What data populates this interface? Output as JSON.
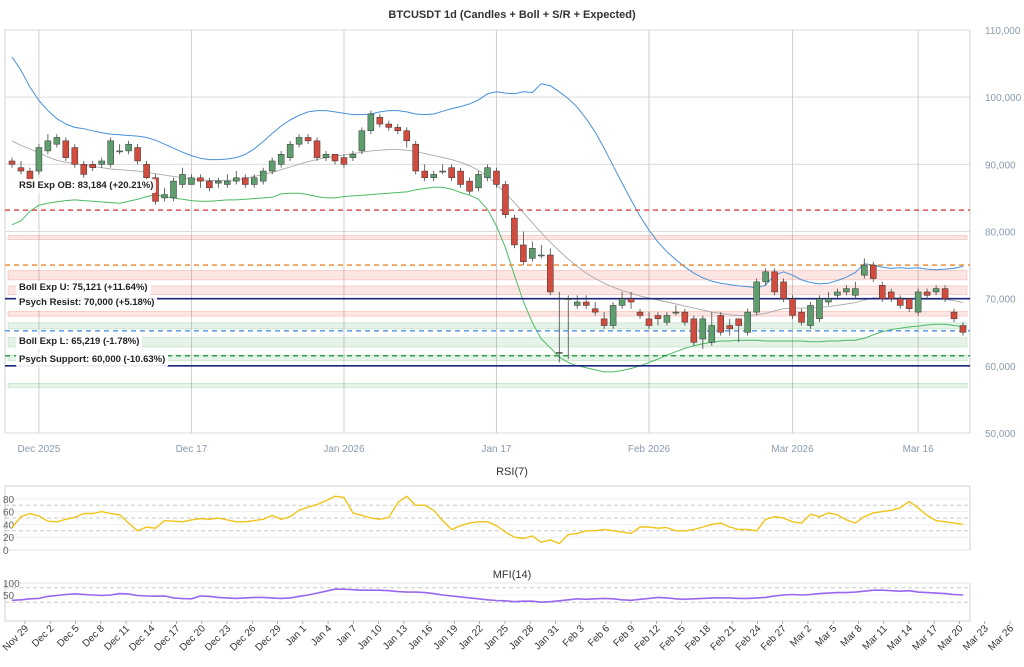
{
  "chart_data": [
    {
      "type": "candlestick",
      "title": "BTCUSDT 1d (Candles + Boll + S/R + Expected)",
      "y_ticks": [
        "110,000",
        "100,000",
        "90,000",
        "80,000",
        "70,000",
        "60,000",
        "50,000"
      ],
      "x_ticks": [
        "Dec 2025",
        "Dec 17",
        "Jan 2026",
        "Jan 17",
        "Feb 2026",
        "Mar 2026",
        "Mar 16"
      ],
      "ylim": [
        50000,
        110000
      ],
      "grid": true,
      "colors": {
        "up": "#5e9e6e",
        "down": "#d24b3f",
        "bb_upper": "#4a90d9",
        "bb_mid": "#a9a9a9",
        "bb_lower": "#4cbb64",
        "exp_ob": "#e05252",
        "exp_u": "#e8862a",
        "exp_l": "#4a90e2",
        "psych": "#1a237e",
        "support_g": "#2e9e57"
      },
      "candles": {
        "open": [
          90500,
          89500,
          89000,
          89000,
          92000,
          93000,
          93500,
          92500,
          90000,
          90000,
          90000,
          90000,
          92000,
          92000,
          92500,
          90000,
          88000,
          85000,
          85000,
          87000,
          87000,
          88000,
          87500,
          87200,
          87000,
          87500,
          88000,
          87000,
          87500,
          89000,
          90000,
          91000,
          93000,
          94000,
          93500,
          91000,
          91500,
          91000,
          91000,
          92000,
          95000,
          97000,
          96000,
          95500,
          95000,
          93000,
          89000,
          88000,
          89000,
          89500,
          89000,
          87500,
          86500,
          88000,
          89000,
          87000,
          82000,
          78000,
          76000,
          76500,
          76500,
          62000,
          70000,
          69000,
          69500,
          68500,
          67000,
          66000,
          69000,
          70000,
          68000,
          67000,
          67500,
          66500,
          68000,
          68000,
          67000,
          64000,
          63500,
          67500,
          66000,
          67000,
          65000,
          68000,
          72500,
          74000,
          72500,
          70000,
          68000,
          66000,
          67000,
          69500,
          70500,
          71000,
          70500,
          73500,
          75000,
          72000,
          71000,
          70000,
          70000,
          68000,
          71000,
          71000,
          71500,
          68000,
          66000
        ],
        "close": [
          90000,
          89000,
          86500,
          92500,
          93500,
          94000,
          91000,
          90000,
          88500,
          89500,
          90500,
          93500,
          92000,
          93000,
          90500,
          88000,
          84500,
          85500,
          87500,
          88500,
          88000,
          87500,
          86500,
          87500,
          87500,
          88000,
          87000,
          88000,
          89000,
          90500,
          91500,
          93000,
          94000,
          93500,
          91000,
          91500,
          90500,
          90000,
          91500,
          95000,
          97500,
          96000,
          95500,
          95000,
          93500,
          89000,
          88000,
          88500,
          89000,
          88000,
          87000,
          86000,
          88500,
          89500,
          87000,
          82500,
          78000,
          75500,
          77500,
          76500,
          71000,
          62000,
          70000,
          69500,
          69000,
          68000,
          66000,
          69000,
          70000,
          69500,
          67500,
          66000,
          67000,
          67500,
          68000,
          66500,
          63500,
          67000,
          66000,
          65000,
          65500,
          66000,
          68000,
          72500,
          74000,
          71000,
          70000,
          67500,
          66500,
          69000,
          70000,
          70000,
          71000,
          71500,
          71500,
          75000,
          73000,
          70000,
          70000,
          69000,
          68500,
          71000,
          70500,
          71500,
          70000,
          67000,
          65000
        ],
        "high": [
          91000,
          90500,
          89500,
          93000,
          94500,
          94500,
          94000,
          93000,
          90500,
          90500,
          91000,
          94000,
          93000,
          93500,
          93000,
          90500,
          88500,
          86500,
          88000,
          89500,
          88500,
          88500,
          88000,
          88000,
          88500,
          89000,
          88500,
          88500,
          89500,
          91000,
          92000,
          93500,
          94500,
          94500,
          94000,
          92000,
          91500,
          91500,
          92000,
          95500,
          98000,
          97500,
          96500,
          96000,
          95500,
          93500,
          90000,
          89000,
          90000,
          90000,
          89500,
          88000,
          89000,
          90000,
          89500,
          87500,
          82500,
          80000,
          78500,
          78000,
          77500,
          71000,
          70500,
          70500,
          70500,
          69500,
          68000,
          69500,
          71000,
          71000,
          68500,
          68000,
          68000,
          68000,
          69000,
          68500,
          67500,
          67500,
          68000,
          68000,
          67000,
          67000,
          68500,
          73000,
          74500,
          74500,
          73000,
          70500,
          68500,
          69500,
          70500,
          71000,
          71500,
          72000,
          72500,
          76000,
          75500,
          72500,
          71500,
          70500,
          70000,
          71500,
          71500,
          72000,
          72000,
          68500,
          66500
        ],
        "low": [
          89500,
          88500,
          86000,
          88500,
          91500,
          92500,
          90500,
          89500,
          88000,
          89000,
          89500,
          89500,
          91500,
          91500,
          90000,
          87500,
          84000,
          84500,
          84500,
          86500,
          87000,
          86500,
          86000,
          86500,
          86500,
          87000,
          86500,
          86500,
          87000,
          88500,
          89500,
          90500,
          92500,
          93000,
          90500,
          90500,
          90000,
          89500,
          90500,
          91500,
          94500,
          95500,
          95000,
          94500,
          92500,
          88500,
          87500,
          87500,
          88500,
          87500,
          86500,
          85500,
          86000,
          87500,
          86500,
          82000,
          77500,
          75000,
          75500,
          76000,
          70500,
          60500,
          61000,
          68500,
          68500,
          67500,
          65500,
          65500,
          68500,
          68500,
          67000,
          65500,
          66000,
          66000,
          67500,
          66000,
          63000,
          62500,
          63000,
          64500,
          64500,
          63500,
          64500,
          67500,
          72000,
          70500,
          69500,
          67000,
          66000,
          65500,
          66500,
          69000,
          70000,
          70500,
          70000,
          73000,
          72500,
          69500,
          69500,
          68500,
          68000,
          67500,
          70000,
          70500,
          69500,
          66500,
          64500
        ]
      },
      "bollinger": {
        "upper": [
          106000,
          104000,
          101500,
          99500,
          98000,
          96800,
          96000,
          95500,
          95300,
          95000,
          94700,
          94500,
          94400,
          94300,
          94200,
          94000,
          93600,
          93000,
          92400,
          91800,
          91300,
          90900,
          90700,
          90700,
          90800,
          91000,
          91500,
          92300,
          93400,
          94600,
          95700,
          96600,
          97300,
          97800,
          98000,
          98000,
          97800,
          97600,
          97400,
          97400,
          97500,
          97800,
          98000,
          98000,
          97800,
          97500,
          97400,
          97500,
          97900,
          98300,
          98600,
          99000,
          99600,
          100500,
          100800,
          100600,
          100500,
          100800,
          100700,
          102000,
          101700,
          100800,
          99800,
          98500,
          96800,
          94800,
          92400,
          89800,
          87200,
          84700,
          82300,
          80200,
          78400,
          77000,
          75800,
          74700,
          73800,
          73100,
          72600,
          72300,
          72100,
          71900,
          71800,
          71600,
          72000,
          73500,
          74000,
          73500,
          72800,
          72400,
          72200,
          72300,
          72700,
          73200,
          73900,
          75200,
          75000,
          74700,
          74500,
          74600,
          74500,
          74600,
          74400,
          74300,
          74400,
          74500,
          74800
        ],
        "middle": [
          93500,
          92800,
          92300,
          91700,
          91100,
          90600,
          90300,
          90100,
          89900,
          89700,
          89500,
          89300,
          89200,
          89100,
          89000,
          88800,
          88600,
          88400,
          88200,
          88000,
          87800,
          87700,
          87600,
          87600,
          87600,
          87700,
          87900,
          88200,
          88500,
          88800,
          89200,
          89600,
          90000,
          90400,
          90700,
          91000,
          91200,
          91400,
          91600,
          91800,
          92000,
          92100,
          92200,
          92200,
          92100,
          91900,
          91600,
          91300,
          91000,
          90700,
          90300,
          89800,
          89100,
          88200,
          87000,
          85700,
          84300,
          82800,
          81300,
          79800,
          78400,
          77100,
          75900,
          74800,
          73800,
          73000,
          72300,
          71700,
          71200,
          70800,
          70400,
          70100,
          69800,
          69500,
          69200,
          68900,
          68600,
          68300,
          68000,
          67800,
          67600,
          67500,
          67500,
          67600,
          67800,
          68200,
          68500,
          68600,
          68600,
          68600,
          68700,
          68800,
          69000,
          69200,
          69400,
          69800,
          70100,
          70100,
          70100,
          70100,
          70000,
          69900,
          69900,
          69900,
          69900,
          69700,
          69400
        ],
        "lower": [
          81000,
          81600,
          83000,
          83900,
          84200,
          84400,
          84600,
          84700,
          84600,
          84500,
          84400,
          84300,
          84200,
          84500,
          84800,
          85200,
          85500,
          85200,
          85000,
          84800,
          84600,
          84500,
          84500,
          84600,
          84700,
          84700,
          84800,
          84900,
          85000,
          85100,
          85600,
          85700,
          85700,
          85500,
          85200,
          85000,
          85000,
          85200,
          85300,
          85400,
          85500,
          85600,
          85700,
          85800,
          85900,
          86200,
          86400,
          86600,
          86600,
          86300,
          85800,
          85400,
          84800,
          83300,
          80800,
          77600,
          73500,
          69600,
          66400,
          64000,
          62700,
          61300,
          60500,
          60000,
          59700,
          59400,
          59100,
          59100,
          59300,
          59600,
          60000,
          60500,
          61000,
          61600,
          62100,
          62600,
          63000,
          63300,
          63500,
          63700,
          63700,
          63800,
          63800,
          63800,
          63700,
          63700,
          63700,
          63700,
          63700,
          63600,
          63600,
          63700,
          63700,
          63800,
          63800,
          64100,
          64600,
          65100,
          65400,
          65600,
          65800,
          65900,
          66100,
          66200,
          66200,
          66000,
          65800
        ]
      },
      "levels": [
        {
          "label": "RSI Exp OB: 83,184 (+20.21%)",
          "value": 83184,
          "style": "dashed",
          "color": "#e05252"
        },
        {
          "label": "",
          "value": 75000,
          "style": "dashed",
          "color": "#e8862a"
        },
        {
          "label": "Boll Exp U: 75,121 (+11.64%)",
          "value": 75121,
          "style": "none",
          "color": "#e8862a"
        },
        {
          "label": "Psych Resist: 70,000 (+5.18%)",
          "value": 70000,
          "style": "solid",
          "color": "#1a237e"
        },
        {
          "label": "",
          "value": 65219,
          "style": "dashed",
          "color": "#4a90e2"
        },
        {
          "label": "Boll Exp L: 65,219 (-1.78%)",
          "value": 65219,
          "style": "none",
          "color": "#4a90e2"
        },
        {
          "label": "",
          "value": 61500,
          "style": "dashed",
          "color": "#2e9e57"
        },
        {
          "label": "Psych Support: 60,000 (-10.63%)",
          "value": 60000,
          "style": "solid",
          "color": "#1a237e"
        }
      ],
      "zones": [
        {
          "from": 78800,
          "to": 79400,
          "kind": "resistance"
        },
        {
          "from": 72800,
          "to": 74200,
          "kind": "resistance"
        },
        {
          "from": 70600,
          "to": 71900,
          "kind": "resistance"
        },
        {
          "from": 67400,
          "to": 68100,
          "kind": "resistance"
        },
        {
          "from": 65500,
          "to": 66400,
          "kind": "support"
        },
        {
          "from": 62800,
          "to": 64200,
          "kind": "support"
        },
        {
          "from": 60800,
          "to": 61600,
          "kind": "support"
        },
        {
          "from": 56800,
          "to": 57400,
          "kind": "support"
        }
      ]
    },
    {
      "type": "line",
      "title": "RSI(7)",
      "y_ticks": [
        "80",
        "60",
        "40",
        "20",
        "0"
      ],
      "ylim": [
        0,
        100
      ],
      "color": "#f0c419",
      "values": [
        35,
        52,
        57,
        53,
        45,
        44,
        48,
        51,
        57,
        57,
        60,
        57,
        55,
        42,
        30,
        36,
        34,
        46,
        45,
        44,
        47,
        49,
        48,
        50,
        47,
        44,
        44,
        46,
        48,
        54,
        48,
        52,
        62,
        67,
        71,
        77,
        84,
        82,
        58,
        54,
        50,
        48,
        51,
        74,
        84,
        70,
        70,
        62,
        46,
        32,
        38,
        42,
        44,
        44,
        38,
        28,
        20,
        18,
        22,
        12,
        16,
        10,
        24,
        26,
        30,
        30,
        32,
        30,
        28,
        26,
        36,
        36,
        34,
        35,
        30,
        30,
        32,
        36,
        40,
        42,
        36,
        32,
        32,
        30,
        48,
        52,
        50,
        44,
        42,
        56,
        52,
        58,
        55,
        47,
        42,
        52,
        58,
        60,
        62,
        66,
        76,
        66,
        54,
        46,
        44,
        42,
        40
      ]
    },
    {
      "type": "line",
      "title": "MFI(14)",
      "y_ticks": [
        "100",
        "50"
      ],
      "ylim": [
        0,
        100
      ],
      "color": "#9966ee",
      "x_ticks": [
        "Nov 29",
        "Dec 2",
        "Dec 5",
        "Dec 8",
        "Dec 11",
        "Dec 14",
        "Dec 17",
        "Dec 20",
        "Dec 23",
        "Dec 26",
        "Dec 29",
        "Jan 1",
        "Jan 4",
        "Jan 7",
        "Jan 10",
        "Jan 13",
        "Jan 16",
        "Jan 19",
        "Jan 22",
        "Jan 25",
        "Jan 28",
        "Jan 31",
        "Feb 3",
        "Feb 6",
        "Feb 9",
        "Feb 12",
        "Feb 15",
        "Feb 18",
        "Feb 21",
        "Feb 24",
        "Feb 27",
        "Mar 2",
        "Mar 5",
        "Mar 8",
        "Mar 11",
        "Mar 14",
        "Mar 17",
        "Mar 20",
        "Mar 23",
        "Mar 26"
      ],
      "values": [
        28,
        30,
        34,
        36,
        44,
        48,
        52,
        55,
        52,
        50,
        48,
        50,
        56,
        54,
        48,
        46,
        45,
        46,
        38,
        35,
        34,
        46,
        44,
        40,
        38,
        36,
        38,
        40,
        40,
        38,
        36,
        38,
        44,
        50,
        58,
        66,
        74,
        74,
        72,
        70,
        70,
        70,
        68,
        64,
        62,
        62,
        60,
        56,
        50,
        46,
        42,
        38,
        34,
        30,
        27,
        26,
        22,
        24,
        24,
        20,
        22,
        26,
        30,
        34,
        32,
        34,
        36,
        34,
        30,
        28,
        32,
        36,
        40,
        38,
        34,
        32,
        34,
        36,
        38,
        38,
        38,
        36,
        36,
        38,
        40,
        46,
        50,
        52,
        50,
        52,
        56,
        58,
        60,
        60,
        62,
        66,
        70,
        70,
        68,
        66,
        68,
        62,
        60,
        58,
        56,
        52,
        50
      ]
    }
  ]
}
